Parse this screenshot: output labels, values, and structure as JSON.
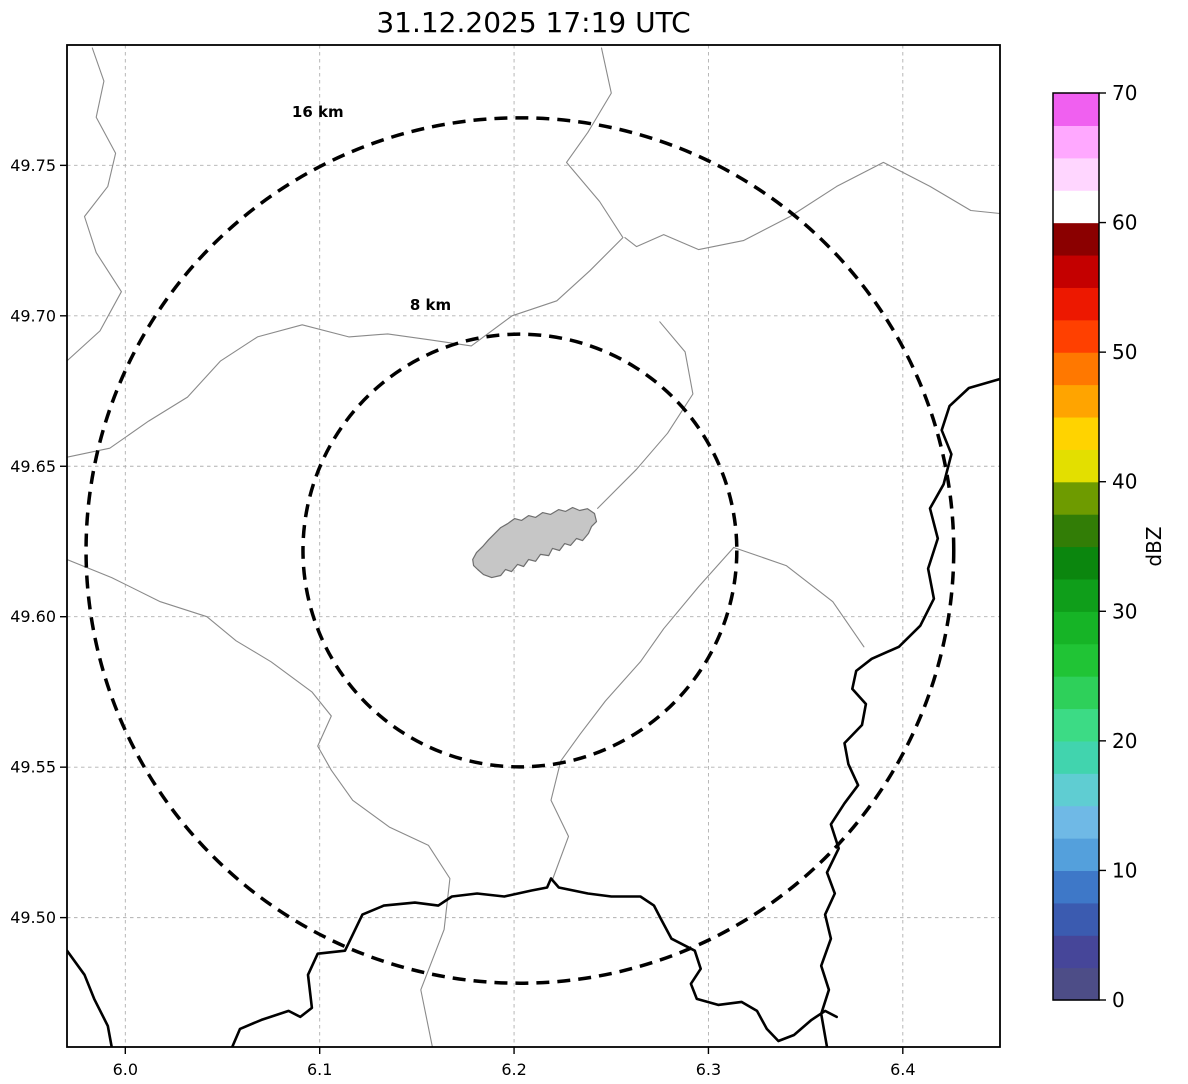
{
  "chart_data": {
    "type": "map",
    "subtype": "radar-reflectivity-map",
    "title": "31.12.2025 17:19 UTC",
    "xlabel": "",
    "ylabel": "",
    "xlim": [
      5.97,
      6.45
    ],
    "ylim": [
      49.457,
      49.79
    ],
    "grid": true,
    "grid_color": "#b0b0b0",
    "x_ticks": [
      6.0,
      6.1,
      6.2,
      6.3,
      6.4
    ],
    "x_tick_labels": [
      "6.0",
      "6.1",
      "6.2",
      "6.3",
      "6.4"
    ],
    "y_ticks": [
      49.5,
      49.55,
      49.6,
      49.65,
      49.7,
      49.75
    ],
    "y_tick_labels": [
      "49.50",
      "49.55",
      "49.60",
      "49.65",
      "49.70",
      "49.75"
    ],
    "radar_site": {
      "lon": 6.203,
      "lat": 49.622
    },
    "range_rings": [
      {
        "label": "8 km",
        "radius_km": 8,
        "rx_deg": 0.1116,
        "ry_deg": 0.0719,
        "label_lon": 6.157,
        "label_lat": 49.702
      },
      {
        "label": "16 km",
        "radius_km": 16,
        "rx_deg": 0.2232,
        "ry_deg": 0.1438,
        "label_lon": 6.099,
        "label_lat": 49.766
      }
    ],
    "echoes": [],
    "colorbar": {
      "label": "dBZ",
      "min": 0,
      "max": 70,
      "ticks": [
        0,
        10,
        20,
        30,
        40,
        50,
        60,
        70
      ],
      "tick_labels": [
        "0",
        "10",
        "20",
        "30",
        "40",
        "50",
        "60",
        "70"
      ],
      "colors_bottom_to_top": [
        "#4d4d87",
        "#464699",
        "#3b5bb0",
        "#3e78c8",
        "#54a0dc",
        "#6fb9e6",
        "#5fcdd2",
        "#41d4ae",
        "#3cdb85",
        "#2ed05a",
        "#20c435",
        "#16b426",
        "#0f9e1a",
        "#0b860e",
        "#327d06",
        "#6e9b00",
        "#e3df00",
        "#ffd300",
        "#ffa400",
        "#ff7800",
        "#ff4000",
        "#ed1800",
        "#c40000",
        "#8b0000",
        "#ffffff",
        "#ffd6ff",
        "#ffa8ff",
        "#f060f0"
      ]
    }
  },
  "map_layers": {
    "city_fill_color": "#c6c6c6",
    "city_edge_color": "#6e6e6e",
    "thin_line_color": "#8a8a8a",
    "bold_line_color": "#000000",
    "city_polygon": [
      [
        6.1813,
        49.6157
      ],
      [
        6.1843,
        49.614
      ],
      [
        6.1885,
        49.613
      ],
      [
        6.1931,
        49.6137
      ],
      [
        6.1956,
        49.6157
      ],
      [
        6.1987,
        49.615
      ],
      [
        6.2018,
        49.6174
      ],
      [
        6.2049,
        49.6167
      ],
      [
        6.2075,
        49.619
      ],
      [
        6.2111,
        49.6184
      ],
      [
        6.2136,
        49.6207
      ],
      [
        6.2178,
        49.6203
      ],
      [
        6.2198,
        49.6227
      ],
      [
        6.2234,
        49.622
      ],
      [
        6.226,
        49.6243
      ],
      [
        6.2291,
        49.6237
      ],
      [
        6.2321,
        49.626
      ],
      [
        6.2352,
        49.6253
      ],
      [
        6.2383,
        49.6277
      ],
      [
        6.2399,
        49.63
      ],
      [
        6.2424,
        49.6316
      ],
      [
        6.2414,
        49.6343
      ],
      [
        6.2378,
        49.6359
      ],
      [
        6.2337,
        49.6353
      ],
      [
        6.2301,
        49.6363
      ],
      [
        6.2265,
        49.635
      ],
      [
        6.2229,
        49.6356
      ],
      [
        6.2188,
        49.634
      ],
      [
        6.2147,
        49.6346
      ],
      [
        6.2111,
        49.633
      ],
      [
        6.2075,
        49.6336
      ],
      [
        6.2039,
        49.632
      ],
      [
        6.2003,
        49.6326
      ],
      [
        6.1967,
        49.6309
      ],
      [
        6.1931,
        49.6296
      ],
      [
        6.19,
        49.6276
      ],
      [
        6.1869,
        49.6256
      ],
      [
        6.1838,
        49.6233
      ],
      [
        6.1807,
        49.6213
      ],
      [
        6.1787,
        49.619
      ],
      [
        6.1792,
        49.617
      ]
    ],
    "thin_boundaries": [
      [
        [
          5.983,
          49.789
        ],
        [
          5.989,
          49.778
        ],
        [
          5.985,
          49.766
        ],
        [
          5.995,
          49.754
        ],
        [
          5.991,
          49.743
        ],
        [
          5.979,
          49.733
        ],
        [
          5.985,
          49.721
        ],
        [
          5.998,
          49.708
        ],
        [
          5.987,
          49.695
        ],
        [
          5.97,
          49.685
        ]
      ],
      [
        [
          6.245,
          49.789
        ],
        [
          6.25,
          49.774
        ],
        [
          6.238,
          49.761
        ],
        [
          6.227,
          49.751
        ],
        [
          6.244,
          49.738
        ],
        [
          6.256,
          49.726
        ],
        [
          6.239,
          49.715
        ],
        [
          6.222,
          49.705
        ],
        [
          6.199,
          49.7
        ],
        [
          6.178,
          49.69
        ],
        [
          6.157,
          49.692
        ],
        [
          6.135,
          49.694
        ],
        [
          6.115,
          49.693
        ],
        [
          6.091,
          49.697
        ],
        [
          6.068,
          49.693
        ],
        [
          6.049,
          49.685
        ],
        [
          6.032,
          49.673
        ],
        [
          6.012,
          49.665
        ],
        [
          5.992,
          49.656
        ],
        [
          5.97,
          49.653
        ]
      ],
      [
        [
          6.45,
          49.734
        ],
        [
          6.435,
          49.735
        ],
        [
          6.414,
          49.743
        ],
        [
          6.39,
          49.751
        ],
        [
          6.366,
          49.743
        ],
        [
          6.342,
          49.733
        ],
        [
          6.318,
          49.725
        ],
        [
          6.295,
          49.722
        ],
        [
          6.277,
          49.727
        ],
        [
          6.263,
          49.723
        ],
        [
          6.257,
          49.726
        ]
      ],
      [
        [
          5.97,
          49.619
        ],
        [
          5.993,
          49.613
        ],
        [
          6.018,
          49.605
        ],
        [
          6.042,
          49.6
        ],
        [
          6.057,
          49.592
        ],
        [
          6.075,
          49.585
        ],
        [
          6.096,
          49.575
        ],
        [
          6.106,
          49.567
        ],
        [
          6.099,
          49.557
        ],
        [
          6.106,
          49.549
        ],
        [
          6.117,
          49.539
        ],
        [
          6.136,
          49.53
        ],
        [
          6.156,
          49.524
        ],
        [
          6.167,
          49.513
        ],
        [
          6.164,
          49.496
        ],
        [
          6.152,
          49.476
        ],
        [
          6.158,
          49.457
        ]
      ],
      [
        [
          6.313,
          49.623
        ],
        [
          6.295,
          49.61
        ],
        [
          6.277,
          49.596
        ],
        [
          6.265,
          49.585
        ],
        [
          6.247,
          49.572
        ],
        [
          6.234,
          49.561
        ],
        [
          6.224,
          49.552
        ],
        [
          6.219,
          49.539
        ],
        [
          6.228,
          49.527
        ],
        [
          6.22,
          49.513
        ]
      ],
      [
        [
          6.313,
          49.623
        ],
        [
          6.34,
          49.617
        ],
        [
          6.364,
          49.605
        ],
        [
          6.38,
          49.59
        ]
      ],
      [
        [
          6.243,
          49.636
        ],
        [
          6.263,
          49.649
        ],
        [
          6.279,
          49.661
        ],
        [
          6.292,
          49.674
        ],
        [
          6.288,
          49.688
        ],
        [
          6.275,
          49.698
        ]
      ]
    ],
    "bold_borders": [
      [
        [
          6.45,
          49.679
        ],
        [
          6.434,
          49.676
        ],
        [
          6.424,
          49.67
        ],
        [
          6.42,
          49.662
        ],
        [
          6.425,
          49.654
        ],
        [
          6.421,
          49.644
        ],
        [
          6.414,
          49.636
        ],
        [
          6.418,
          49.626
        ],
        [
          6.413,
          49.616
        ],
        [
          6.416,
          49.606
        ],
        [
          6.409,
          49.597
        ],
        [
          6.398,
          49.59
        ],
        [
          6.384,
          49.586
        ],
        [
          6.376,
          49.582
        ],
        [
          6.374,
          49.576
        ],
        [
          6.381,
          49.571
        ],
        [
          6.379,
          49.564
        ],
        [
          6.37,
          49.558
        ],
        [
          6.372,
          49.551
        ],
        [
          6.377,
          49.544
        ],
        [
          6.37,
          49.538
        ],
        [
          6.363,
          49.531
        ],
        [
          6.367,
          49.523
        ],
        [
          6.361,
          49.515
        ],
        [
          6.365,
          49.508
        ],
        [
          6.36,
          49.501
        ],
        [
          6.363,
          49.493
        ],
        [
          6.358,
          49.484
        ],
        [
          6.362,
          49.476
        ],
        [
          6.358,
          49.468
        ],
        [
          6.361,
          49.457
        ]
      ],
      [
        [
          5.97,
          49.489
        ],
        [
          5.979,
          49.481
        ],
        [
          5.984,
          49.473
        ],
        [
          5.991,
          49.464
        ],
        [
          5.993,
          49.457
        ]
      ],
      [
        [
          6.055,
          49.457
        ],
        [
          6.059,
          49.463
        ],
        [
          6.07,
          49.466
        ],
        [
          6.084,
          49.469
        ],
        [
          6.09,
          49.467
        ],
        [
          6.096,
          49.47
        ],
        [
          6.094,
          49.481
        ],
        [
          6.099,
          49.488
        ],
        [
          6.113,
          49.489
        ],
        [
          6.122,
          49.501
        ],
        [
          6.133,
          49.504
        ],
        [
          6.149,
          49.505
        ],
        [
          6.161,
          49.504
        ],
        [
          6.168,
          49.507
        ],
        [
          6.181,
          49.508
        ],
        [
          6.195,
          49.507
        ],
        [
          6.209,
          49.509
        ],
        [
          6.217,
          49.51
        ],
        [
          6.219,
          49.513
        ],
        [
          6.223,
          49.51
        ],
        [
          6.238,
          49.508
        ],
        [
          6.25,
          49.507
        ],
        [
          6.265,
          49.507
        ],
        [
          6.272,
          49.504
        ],
        [
          6.276,
          49.499
        ],
        [
          6.281,
          49.493
        ],
        [
          6.293,
          49.489
        ],
        [
          6.296,
          49.483
        ],
        [
          6.291,
          49.478
        ],
        [
          6.294,
          49.473
        ],
        [
          6.305,
          49.471
        ],
        [
          6.317,
          49.472
        ],
        [
          6.325,
          49.469
        ],
        [
          6.33,
          49.463
        ],
        [
          6.336,
          49.459
        ],
        [
          6.344,
          49.461
        ],
        [
          6.353,
          49.466
        ],
        [
          6.36,
          49.469
        ],
        [
          6.366,
          49.467
        ]
      ]
    ]
  }
}
